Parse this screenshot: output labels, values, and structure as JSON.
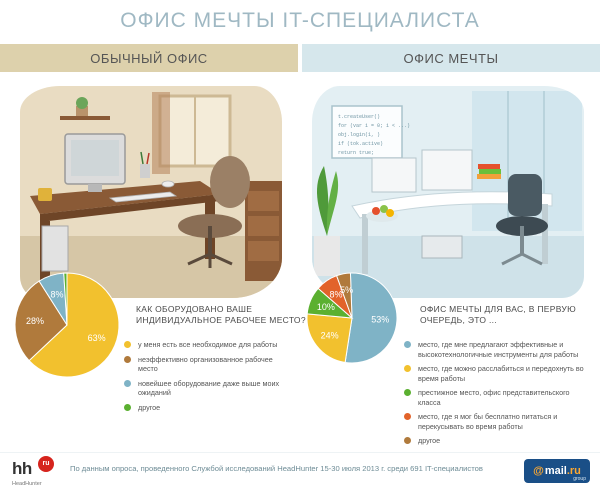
{
  "title": "ОФИС МЕЧТЫ IT-СПЕЦИАЛИСТА",
  "bands": {
    "left": "ОБЫЧНЫЙ ОФИС",
    "right": "ОФИС МЕЧТЫ"
  },
  "illustrations": {
    "left": {
      "palette": {
        "wall": "#e8dcc3",
        "desk": "#8a5a36"
      }
    },
    "right": {
      "palette": {
        "wall": "#e4f0f4",
        "desk": "#ffffff"
      },
      "whiteboard_lines": [
        "t.createUser()",
        "for (var i = 0; i < ...)",
        "obj.login(1, )",
        "if (tok.active)",
        "return true;"
      ]
    }
  },
  "sections": {
    "left": {
      "question": "КАК ОБОРУДОВАНО ВАШЕ ИНДИВИДУАЛЬНОЕ РАБОЧЕЕ МЕСТО?",
      "pie_labels": [
        "63",
        "28",
        "8",
        "1"
      ],
      "legend": [
        {
          "color": "#f2c12e",
          "text": "у меня есть все необходимое для работы"
        },
        {
          "color": "#b07a3c",
          "text": "неэффективно организованное рабочее место"
        },
        {
          "color": "#7fb3c6",
          "text": "новейшее оборудование даже выше моих ожиданий"
        },
        {
          "color": "#5bb030",
          "text": "другое"
        }
      ]
    },
    "right": {
      "question": "ОФИС МЕЧТЫ ДЛЯ ВАС, В ПЕРВУЮ ОЧЕРЕДЬ, ЭТО ...",
      "pie_labels": [
        "53",
        "24",
        "10",
        "8",
        "5"
      ],
      "legend": [
        {
          "color": "#7fb3c6",
          "text": "место, где мне предлагают эффективные и высокотехнологичные инструменты для работы"
        },
        {
          "color": "#f2c12e",
          "text": "место, где можно расслабиться и передохнуть во время работы"
        },
        {
          "color": "#5bb030",
          "text": "престижное место, офис представительского класса"
        },
        {
          "color": "#e2632a",
          "text": "место, где я мог бы бесплатно питаться и перекусывать во время работы"
        },
        {
          "color": "#b07a3c",
          "text": "другое"
        }
      ]
    }
  },
  "chart_data": [
    {
      "type": "pie",
      "title": "КАК ОБОРУДОВАНО ВАШЕ ИНДИВИДУАЛЬНОЕ РАБОЧЕЕ МЕСТО?",
      "unit": "%",
      "categories": [
        "у меня есть все необходимое для работы",
        "неэффективно организованное рабочее место",
        "новейшее оборудование даже выше моих ожиданий",
        "другое"
      ],
      "values": [
        63,
        28,
        8,
        1
      ],
      "colors": [
        "#f2c12e",
        "#b07a3c",
        "#7fb3c6",
        "#5bb030"
      ]
    },
    {
      "type": "pie",
      "title": "ОФИС МЕЧТЫ ДЛЯ ВАС, В ПЕРВУЮ ОЧЕРЕДЬ, ЭТО ...",
      "unit": "%",
      "categories": [
        "место, где мне предлагают эффективные и высокотехнологичные инструменты для работы",
        "место, где можно расслабиться и передохнуть во время работы",
        "престижное место, офис представительского класса",
        "место, где я мог бы бесплатно питаться и перекусывать во время работы",
        "другое"
      ],
      "values": [
        53,
        24,
        10,
        8,
        5
      ],
      "colors": [
        "#7fb3c6",
        "#f2c12e",
        "#5bb030",
        "#e2632a",
        "#b07a3c"
      ]
    }
  ],
  "footer": {
    "hh_logo": "hh",
    "hh_badge": "ru",
    "hh_sub": "HeadHunter",
    "source": "По данным опроса, проведенного Службой исследований HeadHunter 15-30 июля 2013 г. среди 691 IT-специалистов",
    "mail_at": "@",
    "mail_word": "mail",
    "mail_dot_ru": ".ru",
    "mail_group": "group"
  }
}
